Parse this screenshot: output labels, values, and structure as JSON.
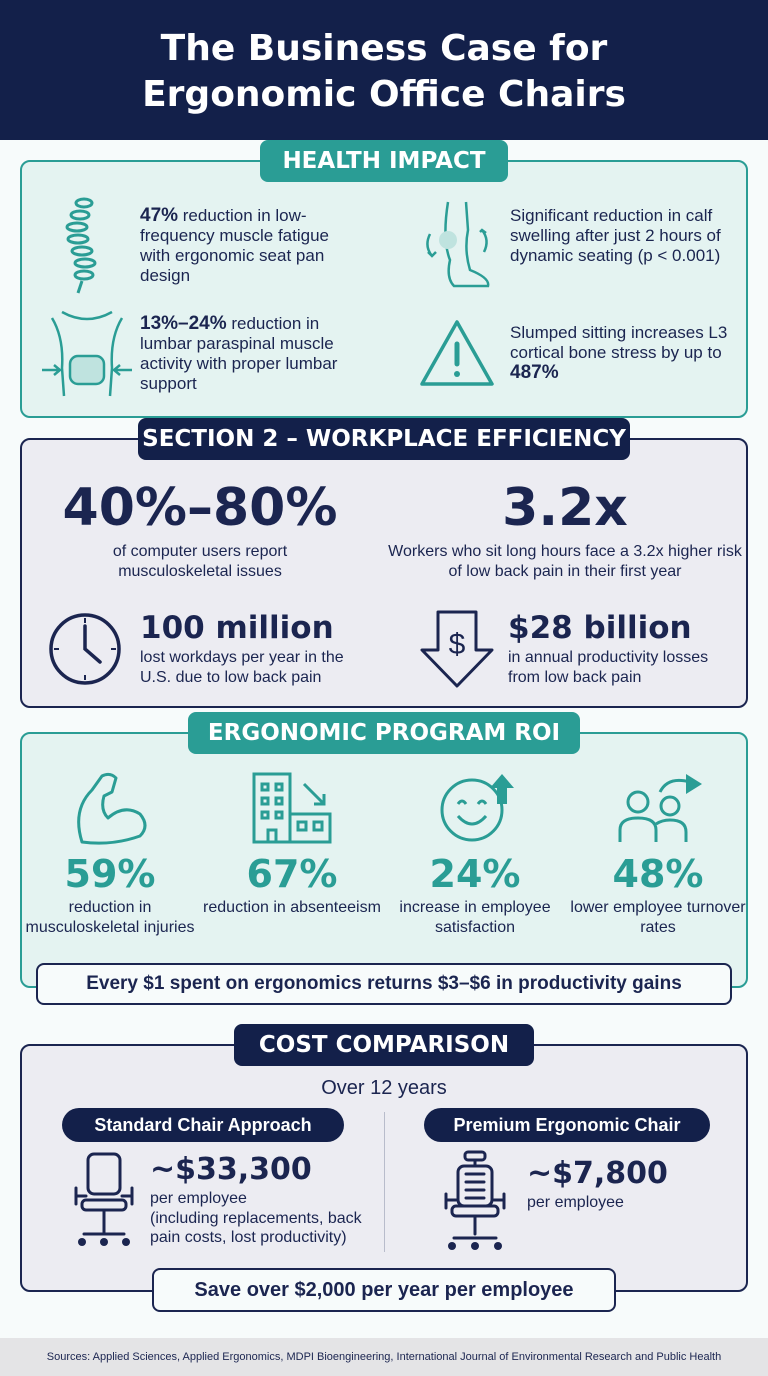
{
  "header": {
    "title_lines": [
      "The Business Case for",
      "Ergonomic Office Chairs"
    ]
  },
  "health_impact": {
    "label": "HEALTH IMPACT",
    "items": [
      {
        "highlight": "47%",
        "text": "reduction in low-frequency muscle fatigue with ergonomic seat pan design"
      },
      {
        "highlight": "13%–24%",
        "text": "reduction in lumbar paraspinal muscle activity with proper lumbar support"
      },
      {
        "text": "Significant reduction in calf swelling after just 2 hours of dynamic seating (p < 0.001)"
      },
      {
        "text": "Slumped sitting increases L3 cortical bone stress by up to",
        "highlight": "487%"
      }
    ]
  },
  "workplace_efficiency": {
    "label": "SECTION 2 – WORKPLACE EFFICIENCY",
    "stats": [
      {
        "value": "40%–80%",
        "text": "of computer users report musculoskeletal issues"
      },
      {
        "value": "3.2x",
        "text": "Workers who sit long hours face a 3.2x higher risk of low back pain in their first year"
      },
      {
        "value": "100 million",
        "text": "lost workdays per year in the U.S. due to low back pain"
      },
      {
        "value": "$28 billion",
        "text": "in annual productivity losses from low back pain"
      }
    ]
  },
  "program_roi": {
    "label": "ERGONOMIC PROGRAM ROI",
    "stats": [
      {
        "value": "59%",
        "text": "reduction in musculoskeletal injuries"
      },
      {
        "value": "67%",
        "text": "reduction in absenteeism"
      },
      {
        "value": "24%",
        "text": "increase in employee satisfaction"
      },
      {
        "value": "48%",
        "text": "lower employee turnover rates"
      }
    ],
    "callout": "Every $1 spent on ergonomics returns $3–$6 in productivity gains"
  },
  "cost_comparison": {
    "label": "COST COMPARISON",
    "period": "Over 12 years",
    "options": [
      {
        "name": "Standard Chair Approach",
        "cost": "~$33,300",
        "unit": "per employee",
        "note": "(including replacements, back pain costs, lost productivity)"
      },
      {
        "name": "Premium Ergonomic Chair",
        "cost": "~$7,800",
        "unit": "per employee"
      }
    ],
    "callout": "Save over $2,000 per year per employee"
  },
  "footer": {
    "sources": "Sources: Applied Sciences, Applied Ergonomics, MDPI Bioengineering, International Journal of Environmental Research and Public Health"
  }
}
